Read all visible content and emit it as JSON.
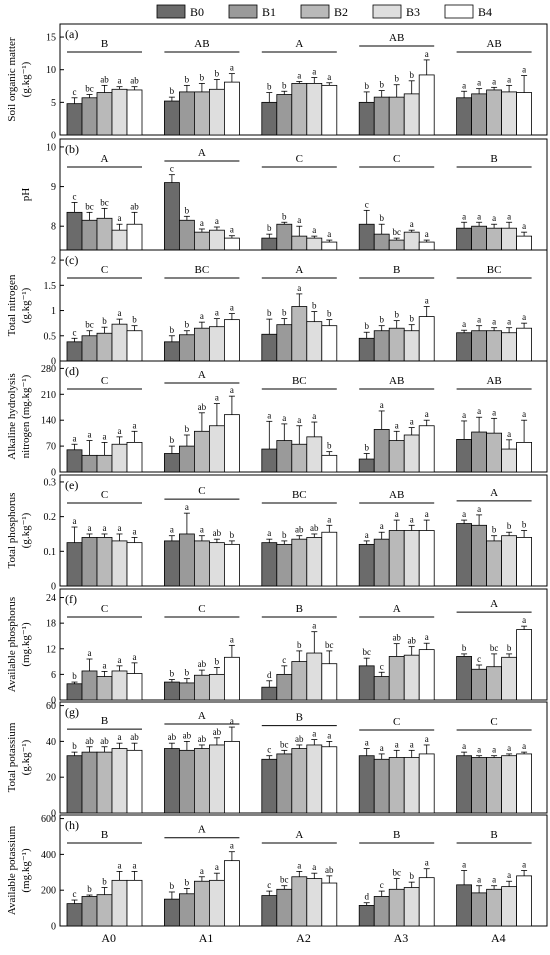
{
  "legend": {
    "items": [
      {
        "label": "B0",
        "color": "#6b6b6b"
      },
      {
        "label": "B1",
        "color": "#9a9a9a"
      },
      {
        "label": "B2",
        "color": "#b9b9b9"
      },
      {
        "label": "B3",
        "color": "#dedede"
      },
      {
        "label": "B4",
        "color": "#ffffff"
      }
    ]
  },
  "chart_data": {
    "type": "bar",
    "categories": [
      "A0",
      "A1",
      "A2",
      "A3",
      "A4"
    ],
    "series_names": [
      "B0",
      "B1",
      "B2",
      "B3",
      "B4"
    ],
    "panels": [
      {
        "tag": "(a)",
        "ylabel": [
          "Soil organic matter",
          "(g.kg⁻¹)"
        ],
        "ylim": [
          0,
          17
        ],
        "yticks": [
          0,
          5,
          10,
          15
        ],
        "values": [
          [
            4.8,
            5.7,
            6.5,
            7.0,
            6.9
          ],
          [
            5.2,
            6.6,
            6.6,
            7.0,
            8.1
          ],
          [
            5.0,
            6.2,
            7.9,
            7.9,
            7.6
          ],
          [
            5.0,
            5.8,
            5.8,
            6.3,
            9.2
          ],
          [
            5.7,
            6.3,
            6.9,
            6.6,
            6.5
          ]
        ],
        "errors": [
          [
            0.9,
            0.5,
            1.1,
            0.4,
            0.5
          ],
          [
            0.6,
            1.0,
            1.3,
            1.5,
            1.3
          ],
          [
            1.5,
            0.5,
            0.3,
            0.9,
            0.4
          ],
          [
            1.6,
            1.0,
            1.9,
            2.0,
            2.3
          ],
          [
            1.0,
            0.8,
            0.4,
            1.0,
            2.6
          ]
        ],
        "letters": [
          [
            "c",
            "bc",
            "ab",
            "a",
            "ab"
          ],
          [
            "b",
            "b",
            "b",
            "b",
            "a"
          ],
          [
            "b",
            "b",
            "a",
            "a",
            "a"
          ],
          [
            "b",
            "b",
            "b",
            "b",
            "a"
          ],
          [
            "a",
            "a",
            "a",
            "a",
            "a"
          ]
        ],
        "group_labels": [
          "B",
          "AB",
          "A",
          "AB",
          "AB"
        ]
      },
      {
        "tag": "(b)",
        "ylabel": [
          "pH"
        ],
        "ylim": [
          7.4,
          10.2
        ],
        "yticks": [
          8,
          9,
          10
        ],
        "values": [
          [
            8.35,
            8.15,
            8.2,
            7.9,
            8.05
          ],
          [
            9.1,
            8.15,
            7.85,
            7.9,
            7.7
          ],
          [
            7.7,
            8.05,
            7.75,
            7.7,
            7.6
          ],
          [
            8.05,
            7.8,
            7.65,
            7.85,
            7.6
          ],
          [
            7.95,
            8.0,
            7.95,
            7.95,
            7.75
          ]
        ],
        "errors": [
          [
            0.25,
            0.2,
            0.25,
            0.15,
            0.3
          ],
          [
            0.2,
            0.1,
            0.08,
            0.08,
            0.06
          ],
          [
            0.1,
            0.05,
            0.25,
            0.05,
            0.05
          ],
          [
            0.35,
            0.25,
            0.05,
            0.05,
            0.05
          ],
          [
            0.15,
            0.1,
            0.1,
            0.15,
            0.1
          ]
        ],
        "letters": [
          [
            "c",
            "bc",
            "bc",
            "a",
            "ab"
          ],
          [
            "c",
            "b",
            "a",
            "a",
            "a"
          ],
          [
            "b",
            "b",
            "a",
            "a",
            "a"
          ],
          [
            "c",
            "b",
            "bc",
            "a",
            "a"
          ],
          [
            "a",
            "a",
            "a",
            "a",
            "a"
          ]
        ],
        "group_labels": [
          "A",
          "A",
          "C",
          "C",
          "B"
        ]
      },
      {
        "tag": "(c)",
        "ylabel": [
          "Total nitrogen",
          "(g.kg⁻¹)"
        ],
        "ylim": [
          0,
          2.2
        ],
        "yticks": [
          0,
          0.5,
          1.0,
          1.5,
          2.0
        ],
        "values": [
          [
            0.38,
            0.5,
            0.55,
            0.73,
            0.6
          ],
          [
            0.38,
            0.52,
            0.65,
            0.68,
            0.82
          ],
          [
            0.53,
            0.72,
            1.08,
            0.78,
            0.7
          ],
          [
            0.45,
            0.6,
            0.65,
            0.6,
            0.88
          ],
          [
            0.56,
            0.6,
            0.6,
            0.56,
            0.65
          ]
        ],
        "errors": [
          [
            0.07,
            0.1,
            0.12,
            0.1,
            0.1
          ],
          [
            0.12,
            0.08,
            0.12,
            0.16,
            0.12
          ],
          [
            0.3,
            0.12,
            0.25,
            0.2,
            0.12
          ],
          [
            0.12,
            0.1,
            0.15,
            0.12,
            0.2
          ],
          [
            0.05,
            0.1,
            0.06,
            0.1,
            0.1
          ]
        ],
        "letters": [
          [
            "c",
            "bc",
            "b",
            "a",
            "b"
          ],
          [
            "b",
            "b",
            "a",
            "a",
            "a"
          ],
          [
            "b",
            "b",
            "a",
            "b",
            "b"
          ],
          [
            "b",
            "b",
            "b",
            "b",
            "a"
          ],
          [
            "a",
            "a",
            "a",
            "a",
            "a"
          ]
        ],
        "group_labels": [
          "C",
          "BC",
          "A",
          "B",
          "BC"
        ]
      },
      {
        "tag": "(d)",
        "ylabel": [
          "Alkaline hydrolysis",
          "nitrogen (mg.kg⁻¹)"
        ],
        "ylim": [
          0,
          300
        ],
        "yticks": [
          0,
          70,
          140,
          210,
          280
        ],
        "values": [
          [
            60,
            45,
            45,
            75,
            80
          ],
          [
            50,
            70,
            110,
            125,
            155
          ],
          [
            62,
            85,
            75,
            95,
            45
          ],
          [
            35,
            115,
            85,
            100,
            125
          ],
          [
            88,
            108,
            105,
            62,
            80
          ]
        ],
        "errors": [
          [
            15,
            40,
            35,
            20,
            30
          ],
          [
            20,
            30,
            50,
            60,
            50
          ],
          [
            75,
            45,
            50,
            40,
            10
          ],
          [
            15,
            50,
            25,
            20,
            15
          ],
          [
            50,
            40,
            40,
            25,
            60
          ]
        ],
        "letters": [
          [
            "a",
            "a",
            "a",
            "a",
            "a"
          ],
          [
            "b",
            "b",
            "ab",
            "a",
            "a"
          ],
          [
            "a",
            "a",
            "a",
            "a",
            "b"
          ],
          [
            "b",
            "a",
            "a",
            "a",
            "a"
          ],
          [
            "a",
            "a",
            "a",
            "a",
            "a"
          ]
        ],
        "group_labels": [
          "C",
          "A",
          "BC",
          "AB",
          "AB"
        ]
      },
      {
        "tag": "(e)",
        "ylabel": [
          "Total phosphorus",
          "(g.kg⁻¹)"
        ],
        "ylim": [
          0,
          0.32
        ],
        "yticks": [
          0,
          0.1,
          0.2,
          0.3
        ],
        "values": [
          [
            0.125,
            0.14,
            0.14,
            0.13,
            0.125
          ],
          [
            0.13,
            0.15,
            0.13,
            0.125,
            0.12
          ],
          [
            0.125,
            0.12,
            0.135,
            0.14,
            0.155
          ],
          [
            0.12,
            0.135,
            0.16,
            0.16,
            0.16
          ],
          [
            0.18,
            0.175,
            0.13,
            0.145,
            0.14
          ]
        ],
        "errors": [
          [
            0.045,
            0.01,
            0.01,
            0.02,
            0.015
          ],
          [
            0.015,
            0.06,
            0.015,
            0.01,
            0.01
          ],
          [
            0.01,
            0.01,
            0.01,
            0.01,
            0.02
          ],
          [
            0.01,
            0.02,
            0.03,
            0.015,
            0.03
          ],
          [
            0.01,
            0.03,
            0.015,
            0.01,
            0.02
          ]
        ],
        "letters": [
          [
            "a",
            "a",
            "a",
            "a",
            "a"
          ],
          [
            "a",
            "a",
            "a",
            "ab",
            "b"
          ],
          [
            "a",
            "b",
            "ab",
            "ab",
            "a"
          ],
          [
            "a",
            "a",
            "a",
            "a",
            "a"
          ],
          [
            "a",
            "a",
            "b",
            "b",
            "b"
          ]
        ],
        "group_labels": [
          "C",
          "C",
          "BC",
          "AB",
          "A"
        ]
      },
      {
        "tag": "(f)",
        "ylabel": [
          "Available phosphorus",
          "(mg.kg⁻¹)"
        ],
        "ylim": [
          0,
          26
        ],
        "yticks": [
          0,
          6,
          12,
          18,
          24
        ],
        "values": [
          [
            3.8,
            6.8,
            5.5,
            6.8,
            6.2
          ],
          [
            4.2,
            4.0,
            5.8,
            6.0,
            10.0
          ],
          [
            3.0,
            6.0,
            9.0,
            11.0,
            8.5
          ],
          [
            8.0,
            5.5,
            10.2,
            10.5,
            11.8
          ],
          [
            10.2,
            7.2,
            7.8,
            10.0,
            16.5
          ]
        ],
        "errors": [
          [
            0.4,
            2.8,
            1.2,
            1.2,
            2.5
          ],
          [
            0.6,
            1.0,
            1.2,
            1.6,
            2.8
          ],
          [
            1.5,
            2.0,
            2.5,
            5.0,
            3.0
          ],
          [
            1.8,
            1.0,
            3.0,
            2.0,
            1.5
          ],
          [
            0.6,
            1.0,
            3.0,
            0.8,
            0.8
          ]
        ],
        "letters": [
          [
            "b",
            "a",
            "a",
            "a",
            "a"
          ],
          [
            "b",
            "b",
            "ab",
            "b",
            "a"
          ],
          [
            "d",
            "c",
            "b",
            "a",
            "bc"
          ],
          [
            "bc",
            "c",
            "ab",
            "ab",
            "a"
          ],
          [
            "b",
            "c",
            "bc",
            "b",
            "a"
          ]
        ],
        "group_labels": [
          "C",
          "C",
          "B",
          "A",
          "A"
        ]
      },
      {
        "tag": "(g)",
        "ylabel": [
          "Total potassium",
          "(g.kg⁻¹)"
        ],
        "ylim": [
          0,
          62
        ],
        "yticks": [
          0,
          20,
          40,
          60
        ],
        "values": [
          [
            32,
            34,
            34,
            36,
            35
          ],
          [
            36,
            35,
            36,
            38,
            40
          ],
          [
            30,
            33,
            36,
            38,
            37
          ],
          [
            32,
            30,
            31,
            31,
            33
          ],
          [
            32,
            31,
            31,
            32,
            33
          ]
        ],
        "errors": [
          [
            2,
            3,
            3,
            3,
            4
          ],
          [
            3,
            5,
            2,
            4,
            8
          ],
          [
            2,
            2,
            2,
            3,
            3
          ],
          [
            4,
            3,
            4,
            4,
            5
          ],
          [
            2,
            1,
            1,
            1,
            1
          ]
        ],
        "letters": [
          [
            "b",
            "ab",
            "ab",
            "a",
            "ab"
          ],
          [
            "ab",
            "ab",
            "ab",
            "ab",
            "a"
          ],
          [
            "c",
            "bc",
            "ab",
            "a",
            "a"
          ],
          [
            "a",
            "a",
            "a",
            "a",
            "a"
          ],
          [
            "a",
            "a",
            "a",
            "a",
            "a"
          ]
        ],
        "group_labels": [
          "B",
          "A",
          "B",
          "C",
          "C"
        ]
      },
      {
        "tag": "(h)",
        "ylabel": [
          "Available potassium",
          "(mg.kg⁻¹)"
        ],
        "ylim": [
          0,
          620
        ],
        "yticks": [
          0,
          200,
          400,
          600
        ],
        "values": [
          [
            125,
            165,
            175,
            255,
            255
          ],
          [
            150,
            180,
            250,
            255,
            365
          ],
          [
            170,
            205,
            275,
            265,
            240
          ],
          [
            115,
            165,
            205,
            215,
            270
          ],
          [
            230,
            185,
            205,
            220,
            280
          ]
        ],
        "errors": [
          [
            20,
            8,
            40,
            50,
            50
          ],
          [
            40,
            30,
            25,
            40,
            50
          ],
          [
            25,
            20,
            30,
            30,
            40
          ],
          [
            15,
            30,
            60,
            30,
            50
          ],
          [
            80,
            40,
            20,
            30,
            30
          ]
        ],
        "letters": [
          [
            "c",
            "b",
            "b",
            "a",
            "a"
          ],
          [
            "b",
            "b",
            "a",
            "a",
            "a"
          ],
          [
            "c",
            "bc",
            "a",
            "a",
            "ab"
          ],
          [
            "d",
            "c",
            "bc",
            "b",
            "a"
          ],
          [
            "a",
            "a",
            "a",
            "a",
            "a"
          ]
        ],
        "group_labels": [
          "B",
          "A",
          "A",
          "B",
          "B"
        ]
      }
    ]
  }
}
